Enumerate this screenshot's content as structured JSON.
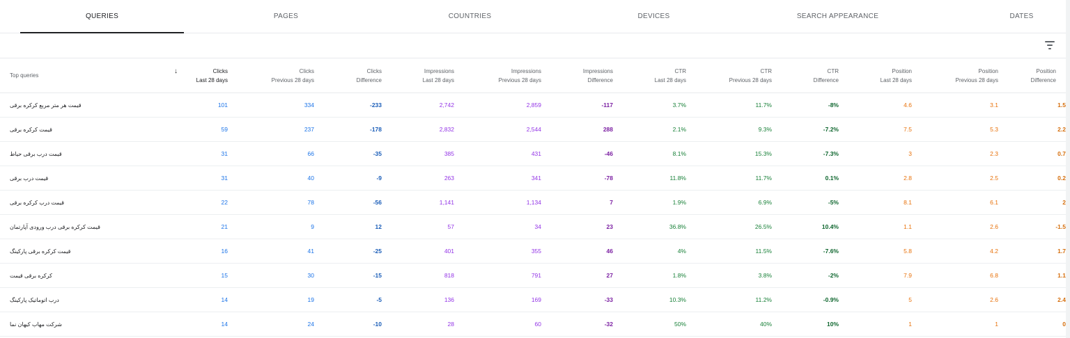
{
  "tabs": [
    {
      "label": "QUERIES",
      "active": true
    },
    {
      "label": "PAGES",
      "active": false
    },
    {
      "label": "COUNTRIES",
      "active": false
    },
    {
      "label": "DEVICES",
      "active": false
    },
    {
      "label": "SEARCH APPEARANCE",
      "active": false
    },
    {
      "label": "DATES",
      "active": false
    }
  ],
  "table": {
    "query_header": "Top queries",
    "sort_indicator": "↓",
    "columns": [
      {
        "metric": "Clicks",
        "period": "Last 28 days"
      },
      {
        "metric": "Clicks",
        "period": "Previous 28 days"
      },
      {
        "metric": "Clicks",
        "period": "Difference"
      },
      {
        "metric": "Impressions",
        "period": "Last 28 days"
      },
      {
        "metric": "Impressions",
        "period": "Previous 28 days"
      },
      {
        "metric": "Impressions",
        "period": "Difference"
      },
      {
        "metric": "CTR",
        "period": "Last 28 days"
      },
      {
        "metric": "CTR",
        "period": "Previous 28 days"
      },
      {
        "metric": "CTR",
        "period": "Difference"
      },
      {
        "metric": "Position",
        "period": "Last 28 days"
      },
      {
        "metric": "Position",
        "period": "Previous 28 days"
      },
      {
        "metric": "Position",
        "period": "Difference"
      }
    ],
    "rows": [
      {
        "query": "قیمت هر متر مربع کرکره برقی",
        "values": [
          "101",
          "334",
          "-233",
          "2,742",
          "2,859",
          "-117",
          "3.7%",
          "11.7%",
          "-8%",
          "4.6",
          "3.1",
          "1.5"
        ]
      },
      {
        "query": "قیمت کرکره برقی",
        "values": [
          "59",
          "237",
          "-178",
          "2,832",
          "2,544",
          "288",
          "2.1%",
          "9.3%",
          "-7.2%",
          "7.5",
          "5.3",
          "2.2"
        ]
      },
      {
        "query": "قیمت درب برقی حیاط",
        "values": [
          "31",
          "66",
          "-35",
          "385",
          "431",
          "-46",
          "8.1%",
          "15.3%",
          "-7.3%",
          "3",
          "2.3",
          "0.7"
        ]
      },
      {
        "query": "قیمت درب برقی",
        "values": [
          "31",
          "40",
          "-9",
          "263",
          "341",
          "-78",
          "11.8%",
          "11.7%",
          "0.1%",
          "2.8",
          "2.5",
          "0.2"
        ]
      },
      {
        "query": "قیمت درب کرکره برقی",
        "values": [
          "22",
          "78",
          "-56",
          "1,141",
          "1,134",
          "7",
          "1.9%",
          "6.9%",
          "-5%",
          "8.1",
          "6.1",
          "2"
        ]
      },
      {
        "query": "قیمت کرکره برقی درب ورودی آپارتمان",
        "values": [
          "21",
          "9",
          "12",
          "57",
          "34",
          "23",
          "36.8%",
          "26.5%",
          "10.4%",
          "1.1",
          "2.6",
          "-1.5"
        ]
      },
      {
        "query": "قیمت کرکره برقی پارکینگ",
        "values": [
          "16",
          "41",
          "-25",
          "401",
          "355",
          "46",
          "4%",
          "11.5%",
          "-7.6%",
          "5.8",
          "4.2",
          "1.7"
        ]
      },
      {
        "query": "کرکره برقی قیمت",
        "values": [
          "15",
          "30",
          "-15",
          "818",
          "791",
          "27",
          "1.8%",
          "3.8%",
          "-2%",
          "7.9",
          "6.8",
          "1.1"
        ]
      },
      {
        "query": "درب اتوماتیک پارکینگ",
        "values": [
          "14",
          "19",
          "-5",
          "136",
          "169",
          "-33",
          "10.3%",
          "11.2%",
          "-0.9%",
          "5",
          "2.6",
          "2.4"
        ]
      },
      {
        "query": "شرکت مهاب کیهان نما",
        "values": [
          "14",
          "24",
          "-10",
          "28",
          "60",
          "-32",
          "50%",
          "40%",
          "10%",
          "1",
          "1",
          "0"
        ]
      }
    ]
  },
  "icons": {
    "filter": "filter-list-icon",
    "sort": "arrow-down-icon"
  },
  "colors": {
    "clicks": "#1a73e8",
    "impressions": "#9334e6",
    "ctr": "#188038",
    "position": "#e8710a"
  }
}
